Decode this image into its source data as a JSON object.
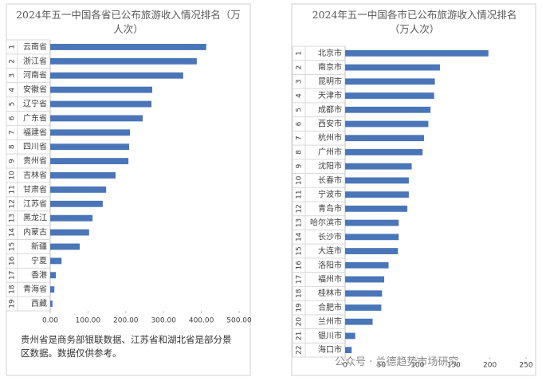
{
  "chart_data": [
    {
      "type": "bar",
      "orientation": "horizontal",
      "title": "2024年五一中国各省已公布旅游收入情况排名（万人次）",
      "ranks": [
        1,
        2,
        3,
        4,
        5,
        6,
        7,
        8,
        9,
        10,
        11,
        12,
        13,
        14,
        15,
        16,
        17,
        18,
        19
      ],
      "categories": [
        "云南省",
        "浙江省",
        "河南省",
        "安徽省",
        "辽宁省",
        "广东省",
        "福建省",
        "四川省",
        "贵州省",
        "吉林省",
        "甘肃省",
        "江苏省",
        "黑龙江",
        "内蒙古",
        "新疆",
        "宁夏",
        "香港",
        "青海省",
        "西藏"
      ],
      "values": [
        413,
        388,
        352,
        270,
        268,
        245,
        211,
        209,
        207,
        173,
        148,
        139,
        112,
        103,
        78,
        30,
        15,
        11,
        6
      ],
      "color": "#4a76b8",
      "xlim": [
        0,
        500
      ],
      "xticks": [
        {
          "value": 0,
          "label": "0.00"
        },
        {
          "value": 100,
          "label": "100.00"
        },
        {
          "value": 200,
          "label": "200.00"
        },
        {
          "value": 300,
          "label": "300.00"
        },
        {
          "value": 400,
          "label": "400.00"
        },
        {
          "value": 500,
          "label": "500.00"
        }
      ],
      "note": "贵州省是商务部银联数据、江苏省和湖北省是部分景区数据。数据仅供参考。"
    },
    {
      "type": "bar",
      "orientation": "horizontal",
      "title": "2024年五一中国各市已公布旅游收入情况排名（万人次）",
      "ranks": [
        1,
        2,
        3,
        4,
        5,
        6,
        7,
        8,
        9,
        10,
        11,
        12,
        13,
        14,
        15,
        16,
        17,
        18,
        19,
        20,
        21,
        22
      ],
      "categories": [
        "北京市",
        "南京市",
        "昆明市",
        "天津市",
        "成都市",
        "西安市",
        "杭州市",
        "广州市",
        "沈阳市",
        "长春市",
        "宁波市",
        "青岛市",
        "哈尔滨市",
        "长沙市",
        "大连市",
        "洛阳市",
        "福州市",
        "桂林市",
        "合肥市",
        "兰州市",
        "银川市",
        "海口市"
      ],
      "values": [
        198,
        131,
        124,
        123,
        118,
        115,
        109,
        107,
        92,
        88,
        88,
        86,
        74,
        74,
        73,
        60,
        54,
        51,
        50,
        38,
        14,
        9
      ],
      "color": "#4a76b8",
      "xlim": [
        0,
        250
      ],
      "xticks": [
        0,
        50,
        100,
        150,
        200,
        250
      ]
    }
  ],
  "watermark": "公众号 · 兰德趋势市场研究"
}
